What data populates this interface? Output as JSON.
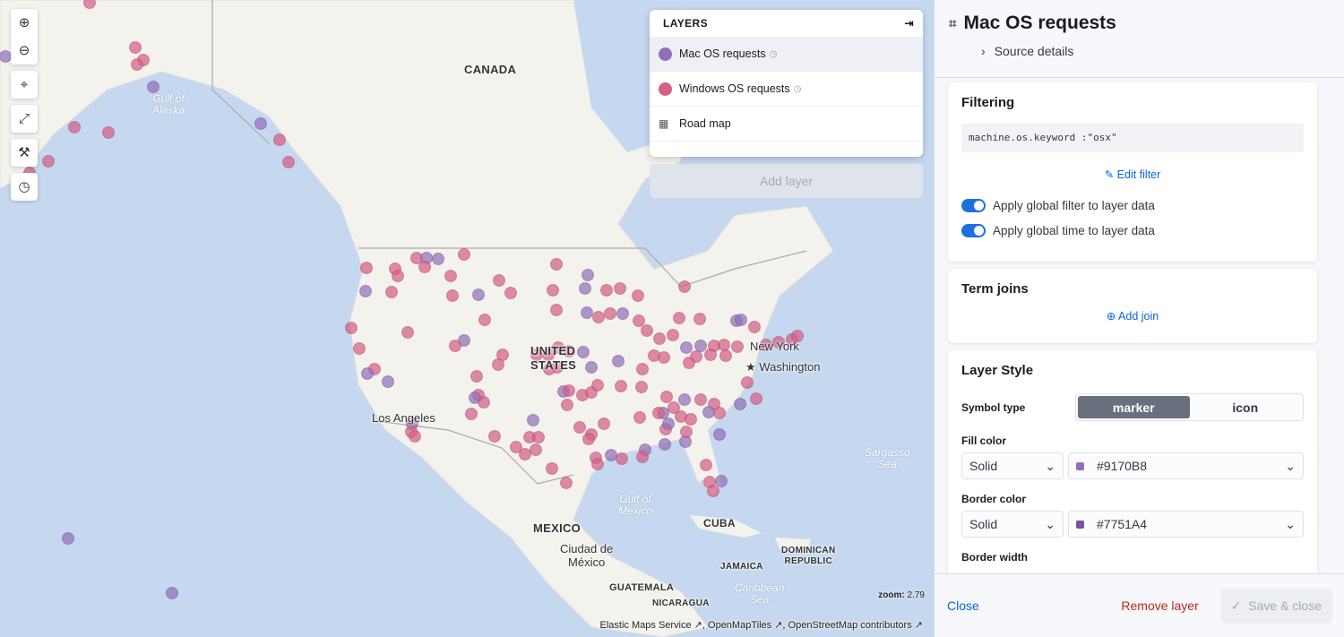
{
  "map": {
    "labels": {
      "canada": "CANADA",
      "gulf_alaska": "Gulf of\nAlaska",
      "usa": "UNITED\nSTATES",
      "new_york": "New York",
      "washington": "Washington",
      "los_angeles": "Los Angeles",
      "mexico": "MEXICO",
      "cdmx": "Ciudad de\nMéxico",
      "gulf_mexico": "Gulf of\nMexico",
      "cuba": "CUBA",
      "dominican": "DOMINICAN\nREPUBLIC",
      "jamaica": "JAMAICA",
      "guatemala": "GUATEMALA",
      "caribbean": "Caribbean\nSea",
      "nicaragua": "NICARAGUA",
      "sargasso": "Sargasso\nSea"
    },
    "zoom_label": "zoom:",
    "zoom_value": "2.79",
    "attribution": {
      "ems": "Elastic Maps Service",
      "omt": "OpenMapTiles",
      "osm": "OpenStreetMap contributors"
    },
    "colors": {
      "mac": "#9170B8",
      "windows": "#D36086",
      "land": "#f4f2ec",
      "water": "#c5d8ef"
    }
  },
  "controls": [
    "zoom-in",
    "zoom-out",
    "set-view",
    "fit-to-data",
    "tools",
    "timeslider"
  ],
  "layers": {
    "title": "LAYERS",
    "items": [
      {
        "label": "Mac OS requests",
        "color": "#9170B8",
        "icon": "circle"
      },
      {
        "label": "Windows OS requests",
        "color": "#D36086",
        "icon": "circle"
      },
      {
        "label": "Road map",
        "icon": "grid"
      }
    ],
    "add_layer": "Add layer"
  },
  "panel": {
    "title": "Mac OS requests",
    "source_details": "Source details",
    "filtering": {
      "title": "Filtering",
      "query": "machine.os.keyword :\"osx\"",
      "edit_filter": "Edit filter",
      "toggle_filter": "Apply global filter to layer data",
      "toggle_time": "Apply global time to layer data"
    },
    "term_joins": {
      "title": "Term joins",
      "add_join": "Add join"
    },
    "layer_style": {
      "title": "Layer Style",
      "symbol_type": "Symbol type",
      "marker": "marker",
      "icon": "icon",
      "fill_color": "Fill color",
      "fill_mode": "Solid",
      "fill_value": "#9170B8",
      "border_color": "Border color",
      "border_mode": "Solid",
      "border_value": "#7751A4",
      "border_width": "Border width"
    },
    "footer": {
      "close": "Close",
      "remove": "Remove layer",
      "save": "Save & close"
    }
  }
}
